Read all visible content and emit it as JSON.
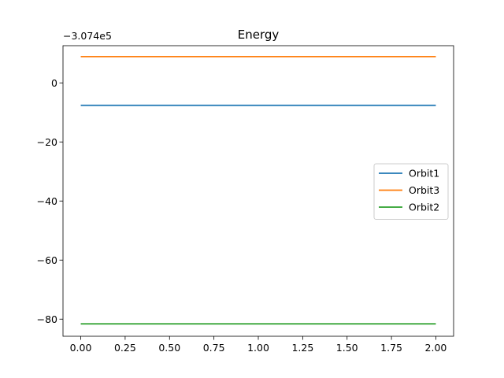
{
  "chart_data": {
    "type": "line",
    "title": "Energy",
    "xlabel": "",
    "ylabel": "",
    "y_offset_label": "−3.074e5",
    "xlim": [
      -0.1,
      2.1
    ],
    "ylim": [
      -85.8,
      12.6
    ],
    "x_ticks": [
      0.0,
      0.25,
      0.5,
      0.75,
      1.0,
      1.25,
      1.5,
      1.75,
      2.0
    ],
    "x_tick_labels": [
      "0.00",
      "0.25",
      "0.50",
      "0.75",
      "1.00",
      "1.25",
      "1.50",
      "1.75",
      "2.00"
    ],
    "y_ticks": [
      0,
      -20,
      -40,
      -60,
      -80
    ],
    "y_tick_labels": [
      "0",
      "−20",
      "−40",
      "−60",
      "−80"
    ],
    "grid": false,
    "legend_position": "center-right",
    "series": [
      {
        "name": "Orbit1",
        "color": "#1f77b4",
        "x": [
          0.0,
          2.0
        ],
        "y": [
          -7.6,
          -7.6
        ]
      },
      {
        "name": "Orbit3",
        "color": "#ff7f0e",
        "x": [
          0.0,
          2.0
        ],
        "y": [
          8.9,
          8.9
        ]
      },
      {
        "name": "Orbit2",
        "color": "#2ca02c",
        "x": [
          0.0,
          2.0
        ],
        "y": [
          -81.6,
          -81.6
        ]
      }
    ]
  }
}
